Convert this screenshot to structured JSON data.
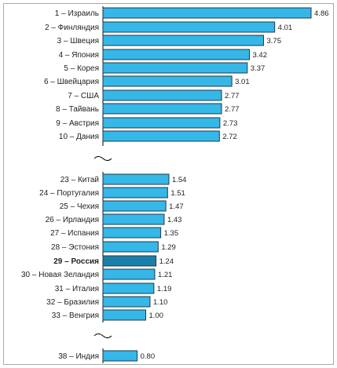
{
  "chart_data": {
    "type": "bar",
    "orientation": "horizontal",
    "title": "",
    "xlabel": "",
    "ylabel": "",
    "grid": false,
    "legend": "none",
    "colors": {
      "bar": "#35b7e8",
      "highlight": "#1a7fa8",
      "border": "#1f3a4a",
      "axis": "#000000"
    },
    "categories": [
      "1 – Израиль",
      "2 – Финляндия",
      "3 – Швеция",
      "4 – Япония",
      "5 – Корея",
      "6 – Швейцария",
      "7 – США",
      "8 – Тайвань",
      "9 – Австрия",
      "10 – Дания",
      "23 – Китай",
      "24 – Португалия",
      "25 – Чехия",
      "26 – Ирландия",
      "27 – Испания",
      "28 – Эстония",
      "29 – Россия",
      "30 – Новая Зеландия",
      "31 – Италия",
      "32 – Бразилия",
      "33 – Венгрия",
      "38 – Индия"
    ],
    "values": [
      4.86,
      4.01,
      3.75,
      3.42,
      3.37,
      3.01,
      2.77,
      2.77,
      2.73,
      2.72,
      1.54,
      1.51,
      1.47,
      1.43,
      1.35,
      1.29,
      1.24,
      1.21,
      1.19,
      1.1,
      1.0,
      0.8
    ],
    "value_labels": [
      "4.86",
      "4.01",
      "3.75",
      "3.42",
      "3.37",
      "3.01",
      "2.77",
      "2.77",
      "2.73",
      "2.72",
      "1.54",
      "1.51",
      "1.47",
      "1.43",
      "1.35",
      "1.29",
      "1.24",
      "1.21",
      "1.19",
      "1.10",
      "1.00",
      "0.80"
    ],
    "groups": [
      [
        0,
        9
      ],
      [
        10,
        20
      ],
      [
        21,
        21
      ]
    ],
    "highlight": "29 – Россия",
    "breaks": "wavy axis break between groups"
  }
}
